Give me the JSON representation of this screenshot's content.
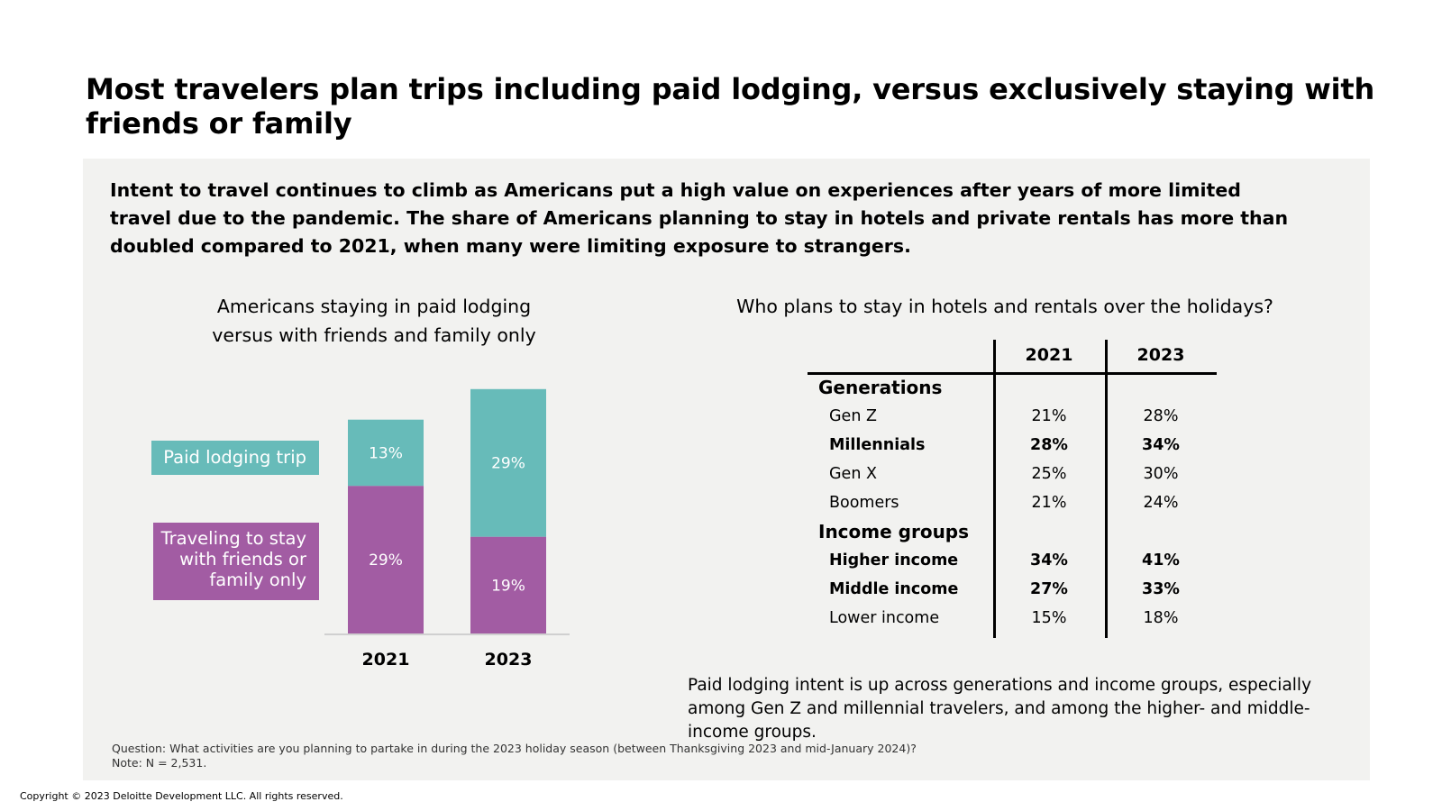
{
  "title": "Most travelers plan trips including paid lodging, versus exclusively staying with friends or family",
  "intro": "Intent to travel continues to climb as Americans put a high value on experiences after years of more limited travel due to the pandemic. The share of Americans planning to stay in hotels and private rentals has more than doubled compared to 2021, when many were limiting exposure to strangers.",
  "chart_data": {
    "type": "bar",
    "stacked": true,
    "title": [
      "Americans staying in paid lodging",
      "versus with friends and family only"
    ],
    "categories": [
      "2021",
      "2023"
    ],
    "series": [
      {
        "name": "Traveling to stay with friends or family only",
        "values": [
          29,
          19
        ],
        "labels": [
          "29%",
          "19%"
        ],
        "color": "#a25ca3"
      },
      {
        "name": "Paid lodging trip",
        "values": [
          13,
          29
        ],
        "labels": [
          "13%",
          "29%"
        ],
        "color": "#67bbb9"
      }
    ],
    "ylim": [
      0,
      50
    ],
    "xlabel": "",
    "ylabel": "",
    "legend": {
      "paid": "Paid lodging trip",
      "friends_lines": [
        "Traveling to stay",
        "with friends or",
        "family only"
      ]
    }
  },
  "table": {
    "title": "Who plans to stay in hotels and rentals over the holidays?",
    "columns": [
      "2021",
      "2023"
    ],
    "rows": [
      {
        "label": "Generations",
        "group": true,
        "v2021": "",
        "v2023": ""
      },
      {
        "label": "Gen Z",
        "group": false,
        "bold": false,
        "v2021": "21%",
        "v2023": "28%"
      },
      {
        "label": "Millennials",
        "group": false,
        "bold": true,
        "v2021": "28%",
        "v2023": "34%"
      },
      {
        "label": "Gen X",
        "group": false,
        "bold": false,
        "v2021": "25%",
        "v2023": "30%"
      },
      {
        "label": "Boomers",
        "group": false,
        "bold": false,
        "v2021": "21%",
        "v2023": "24%"
      },
      {
        "label": "Income groups",
        "group": true,
        "v2021": "",
        "v2023": ""
      },
      {
        "label": "Higher income",
        "group": false,
        "bold": true,
        "v2021": "34%",
        "v2023": "41%"
      },
      {
        "label": "Middle income",
        "group": false,
        "bold": true,
        "v2021": "27%",
        "v2023": "33%"
      },
      {
        "label": "Lower income",
        "group": false,
        "bold": false,
        "v2021": "15%",
        "v2023": "18%"
      }
    ]
  },
  "summary": "Paid lodging intent is up across generations and income groups, especially among Gen Z and millennial travelers, and among the higher- and middle-income groups.",
  "note": {
    "question": "Question: What activities are you planning to partake in during the 2023 holiday season (between Thanksgiving 2023 and mid-January 2024)?",
    "n": "Note: N = 2,531."
  },
  "copyright": "Copyright © 2023 Deloitte Development LLC. All rights reserved."
}
